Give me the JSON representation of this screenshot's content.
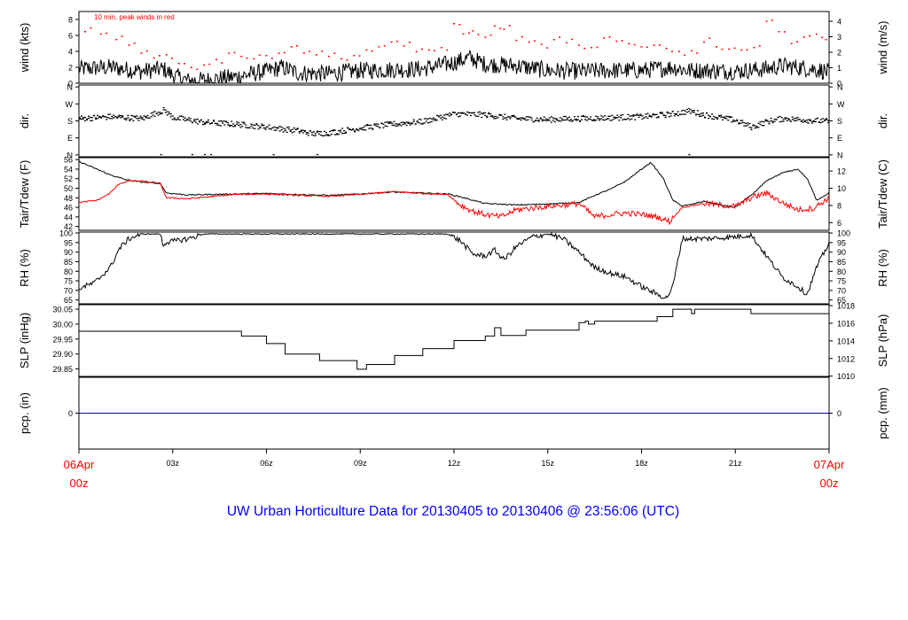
{
  "title": "UW Urban Horticulture Data for 20130405  to  20130406 @ 23:56:06  (UTC)",
  "colors": {
    "axis": "#000000",
    "secondary": "#ff0000",
    "precip": "#0000cc",
    "title": "#0000ff",
    "date": "#ff0000"
  },
  "chart_data": {
    "type": "line",
    "x": {
      "unit": "UTC hour",
      "range": [
        0,
        24
      ],
      "ticks": [
        {
          "h": 0,
          "lines": [
            "06Apr",
            "00z"
          ],
          "color": "red"
        },
        {
          "h": 3,
          "lines": [
            "03z"
          ]
        },
        {
          "h": 6,
          "lines": [
            "06z"
          ]
        },
        {
          "h": 9,
          "lines": [
            "09z"
          ]
        },
        {
          "h": 12,
          "lines": [
            "12z"
          ]
        },
        {
          "h": 15,
          "lines": [
            "15z"
          ]
        },
        {
          "h": 18,
          "lines": [
            "18z"
          ]
        },
        {
          "h": 21,
          "lines": [
            "21z"
          ]
        },
        {
          "h": 24,
          "lines": [
            "07Apr",
            "00z"
          ],
          "color": "red"
        }
      ]
    },
    "panels": [
      {
        "id": "wind",
        "ylabel_left": "wind (kts)",
        "ylabel_right": "wind (m/s)",
        "ylim": [
          0,
          9
        ],
        "left_ticks": [
          {
            "v": 0,
            "t": "0"
          },
          {
            "v": 2,
            "t": "2"
          },
          {
            "v": 4,
            "t": "4"
          },
          {
            "v": 6,
            "t": "6"
          },
          {
            "v": 8,
            "t": "8"
          }
        ],
        "right_ticks": [
          {
            "v": 0,
            "t": "0"
          },
          {
            "v": 1.944,
            "t": "1"
          },
          {
            "v": 3.888,
            "t": "2"
          },
          {
            "v": 5.832,
            "t": "3"
          },
          {
            "v": 7.776,
            "t": "4"
          }
        ],
        "annotation": "10 min. peak winds in red",
        "series": [
          {
            "style": "line",
            "color": "black",
            "x": [
              0,
              1,
              2,
              2.7,
              3,
              3.5,
              4,
              5,
              6,
              6.5,
              7,
              8,
              9,
              10,
              11,
              12,
              12.5,
              13,
              14,
              15,
              16,
              17,
              18,
              19,
              19.5,
              20,
              21,
              22,
              22.5,
              23,
              23.5,
              24
            ],
            "y": [
              1.8,
              2.0,
              1.5,
              1.8,
              1.0,
              0.3,
              0.4,
              0.8,
              1.5,
              2.0,
              1.3,
              1.2,
              1.6,
              1.7,
              1.8,
              2.6,
              3.2,
              2.4,
              2.2,
              1.6,
              1.5,
              1.6,
              1.6,
              2.0,
              1.6,
              1.6,
              1.5,
              1.8,
              2.2,
              2.0,
              1.8,
              1.4
            ]
          },
          {
            "style": "points",
            "color": "red",
            "x": [
              0.2,
              0.7,
              1.2,
              1.6,
              2.0,
              2.4,
              2.8,
              3.2,
              3.6,
              4.0,
              4.4,
              4.8,
              5.2,
              5.6,
              6.0,
              6.4,
              6.8,
              7.2,
              7.6,
              8.0,
              8.4,
              8.8,
              9.2,
              9.6,
              10.0,
              10.4,
              10.8,
              11.2,
              11.6,
              12.0,
              12.3,
              12.6,
              13.0,
              13.3,
              13.6,
              14.0,
              14.4,
              14.8,
              15.2,
              15.6,
              16.0,
              16.4,
              16.8,
              17.2,
              17.6,
              18.0,
              18.4,
              18.8,
              19.2,
              19.6,
              20.0,
              20.4,
              20.8,
              21.2,
              21.6,
              22.0,
              22.4,
              22.8,
              23.2,
              23.6,
              23.9
            ],
            "y": [
              6.5,
              6.2,
              5.5,
              4.8,
              3.8,
              3.2,
              3.6,
              2.5,
              2.0,
              2.3,
              3.0,
              3.8,
              3.4,
              3.1,
              3.5,
              3.8,
              4.6,
              3.8,
              3.6,
              3.4,
              3.1,
              3.5,
              4.2,
              4.6,
              5.2,
              4.7,
              4.0,
              4.2,
              4.5,
              7.5,
              6.2,
              6.6,
              5.8,
              7.2,
              6.8,
              5.4,
              5.2,
              4.9,
              5.5,
              5.1,
              4.8,
              4.5,
              5.7,
              5.3,
              5.0,
              4.6,
              4.8,
              4.4,
              4.0,
              4.1,
              5.2,
              4.6,
              4.3,
              4.2,
              4.5,
              7.8,
              6.5,
              5.0,
              5.8,
              6.2,
              5.5
            ]
          }
        ]
      },
      {
        "id": "dir",
        "ylabel_left": "dir.",
        "ylabel_right": "dir.",
        "ylim": [
          -10,
          370
        ],
        "left_ticks": [
          {
            "v": 0,
            "t": "N"
          },
          {
            "v": 90,
            "t": "E"
          },
          {
            "v": 180,
            "t": "S"
          },
          {
            "v": 270,
            "t": "W"
          },
          {
            "v": 360,
            "t": "N"
          }
        ],
        "right_ticks": [
          {
            "v": 0,
            "t": "N"
          },
          {
            "v": 90,
            "t": "E"
          },
          {
            "v": 180,
            "t": "S"
          },
          {
            "v": 270,
            "t": "W"
          },
          {
            "v": 360,
            "t": "N"
          }
        ],
        "series": [
          {
            "style": "points",
            "color": "black",
            "x": [
              0,
              1,
              2,
              2.7,
              3,
              4,
              5,
              6,
              7,
              7.5,
              8,
              9,
              10,
              11,
              12,
              13,
              14,
              15,
              16,
              17,
              18,
              19,
              19.5,
              20,
              21,
              21.5,
              22,
              22.5,
              23,
              24
            ],
            "y": [
              195,
              205,
              195,
              240,
              200,
              175,
              165,
              150,
              130,
              115,
              120,
              145,
              165,
              180,
              220,
              215,
              195,
              190,
              195,
              200,
              205,
              220,
              235,
              215,
              185,
              150,
              180,
              195,
              190,
              180
            ]
          }
        ]
      },
      {
        "id": "temp",
        "ylabel_left": "Tair/Tdew (F)",
        "ylabel_right": "Tair/Tdew (C)",
        "ylim": [
          41.2,
          56.4
        ],
        "left_ticks": [
          {
            "v": 42,
            "t": "42"
          },
          {
            "v": 44,
            "t": "44"
          },
          {
            "v": 46,
            "t": "46"
          },
          {
            "v": 48,
            "t": "48"
          },
          {
            "v": 50,
            "t": "50"
          },
          {
            "v": 52,
            "t": "52"
          },
          {
            "v": 54,
            "t": "54"
          },
          {
            "v": 56,
            "t": "56"
          }
        ],
        "right_ticks": [
          {
            "v": 42.8,
            "t": "6"
          },
          {
            "v": 46.4,
            "t": "8"
          },
          {
            "v": 50,
            "t": "10"
          },
          {
            "v": 53.6,
            "t": "12"
          }
        ],
        "series": [
          {
            "name": "Tair",
            "style": "line",
            "color": "black",
            "x": [
              0,
              0.5,
              1,
              1.5,
              2,
              2.6,
              2.8,
              3.5,
              5,
              6,
              7,
              8,
              9,
              10,
              11,
              11.8,
              12.2,
              12.6,
              13,
              14,
              15,
              16,
              16.5,
              17,
              17.5,
              18,
              18.3,
              18.7,
              19,
              19.3,
              19.6,
              20,
              20.5,
              21,
              21.5,
              22,
              22.5,
              23,
              23.3,
              23.6,
              24
            ],
            "y": [
              55.6,
              54.2,
              52.8,
              51.8,
              51.3,
              51.0,
              49.0,
              48.6,
              48.8,
              48.9,
              48.7,
              48.5,
              48.8,
              49.2,
              49.0,
              48.8,
              48.2,
              47.5,
              46.8,
              46.5,
              46.7,
              47.0,
              48.5,
              49.8,
              51.5,
              54.0,
              55.4,
              52.0,
              47.5,
              46.3,
              46.6,
              47.3,
              46.5,
              46.0,
              48.5,
              51.5,
              53.2,
              54.0,
              52.0,
              47.5,
              49.0
            ]
          },
          {
            "name": "Tdew",
            "style": "line",
            "color": "red",
            "x": [
              0,
              0.6,
              1,
              1.3,
              1.6,
              2,
              2.6,
              2.8,
              3.5,
              5,
              6,
              7,
              8,
              9,
              10,
              11,
              11.8,
              12.2,
              12.6,
              13,
              13.5,
              14,
              15,
              16,
              16.5,
              17,
              17.5,
              18,
              18.5,
              18.9,
              19.3,
              20,
              21,
              21.5,
              22,
              22.5,
              23,
              23.5,
              24
            ],
            "y": [
              47.0,
              47.5,
              49.0,
              51.0,
              51.5,
              51.5,
              51.0,
              48.0,
              47.8,
              48.7,
              48.8,
              48.5,
              48.3,
              48.7,
              49.3,
              48.9,
              48.7,
              46.5,
              45.2,
              44.5,
              44.0,
              45.5,
              46.2,
              46.8,
              44.0,
              44.5,
              44.8,
              44.5,
              44.0,
              43.0,
              46.0,
              46.8,
              46.2,
              48.0,
              49.0,
              47.0,
              45.5,
              45.8,
              48.0
            ]
          }
        ]
      },
      {
        "id": "rh",
        "ylabel_left": "RH (%)",
        "ylabel_right": "RH (%)",
        "ylim": [
          63,
          100.5
        ],
        "left_ticks": [
          {
            "v": 65,
            "t": "65"
          },
          {
            "v": 70,
            "t": "70"
          },
          {
            "v": 75,
            "t": "75"
          },
          {
            "v": 80,
            "t": "80"
          },
          {
            "v": 85,
            "t": "85"
          },
          {
            "v": 90,
            "t": "90"
          },
          {
            "v": 95,
            "t": "95"
          },
          {
            "v": 100,
            "t": "100"
          }
        ],
        "right_ticks": [
          {
            "v": 65,
            "t": "65"
          },
          {
            "v": 70,
            "t": "70"
          },
          {
            "v": 75,
            "t": "75"
          },
          {
            "v": 80,
            "t": "80"
          },
          {
            "v": 85,
            "t": "85"
          },
          {
            "v": 90,
            "t": "90"
          },
          {
            "v": 95,
            "t": "95"
          },
          {
            "v": 100,
            "t": "100"
          }
        ],
        "series": [
          {
            "style": "line",
            "color": "black",
            "x": [
              0,
              0.5,
              1,
              1.3,
              1.6,
              2,
              2.6,
              2.7,
              2.75,
              3.5,
              4,
              5,
              6,
              7,
              8,
              9,
              10,
              11,
              11.8,
              12.2,
              12.6,
              13,
              13.3,
              13.6,
              14,
              14.5,
              15,
              15.5,
              16,
              16.5,
              17,
              17.5,
              18,
              18.5,
              18.8,
              19,
              19.3,
              20,
              21,
              21.5,
              22,
              22.5,
              23,
              23.3,
              23.6,
              24
            ],
            "y": [
              71,
              74,
              82,
              92,
              97,
              99.5,
              99.5,
              93,
              95,
              97,
              99.5,
              99.5,
              99.5,
              99.5,
              99.5,
              99.5,
              99.5,
              99.5,
              99.5,
              96,
              89,
              88,
              91,
              86,
              93,
              98,
              99.5,
              97,
              90,
              82,
              79,
              77,
              72,
              68,
              66,
              72,
              97,
              97,
              98,
              99,
              88,
              77,
              72,
              68,
              82,
              95
            ]
          }
        ]
      },
      {
        "id": "slp",
        "ylabel_left": "SLP (inHg)",
        "ylabel_right": "SLP (hPa)",
        "ylim": [
          29.825,
          30.065
        ],
        "left_ticks": [
          {
            "v": 29.85,
            "t": "29.85"
          },
          {
            "v": 29.9,
            "t": "29.90"
          },
          {
            "v": 29.95,
            "t": "29.95"
          },
          {
            "v": 30.0,
            "t": "30.00"
          },
          {
            "v": 30.05,
            "t": "30.05"
          }
        ],
        "right_ticks": [
          {
            "v": 29.826,
            "t": "1010"
          },
          {
            "v": 29.885,
            "t": "1012"
          },
          {
            "v": 29.944,
            "t": "1014"
          },
          {
            "v": 30.003,
            "t": "1016"
          },
          {
            "v": 30.062,
            "t": "1018"
          }
        ],
        "series": [
          {
            "style": "step",
            "color": "black",
            "x": [
              0,
              5.2,
              6.0,
              6.6,
              7.7,
              8.9,
              9.2,
              10.1,
              11.0,
              12.0,
              13.0,
              13.3,
              13.5,
              14.3,
              16.0,
              16.2,
              16.3,
              16.5,
              17.0,
              18.5,
              19.0,
              19.6,
              19.7,
              20.0,
              21.5,
              24
            ],
            "y": [
              29.976,
              29.96,
              29.935,
              29.9,
              29.878,
              29.849,
              29.865,
              29.895,
              29.918,
              29.945,
              29.96,
              29.988,
              29.962,
              29.98,
              30.005,
              30.01,
              30.0,
              30.01,
              30.01,
              30.025,
              30.05,
              30.035,
              30.05,
              30.05,
              30.035,
              30.035
            ]
          }
        ]
      },
      {
        "id": "pcp",
        "ylabel_left": "pcp. (in)",
        "ylabel_right": "pcp. (mm)",
        "ylim": [
          -0.05,
          0.05
        ],
        "left_ticks": [
          {
            "v": 0,
            "t": "0"
          }
        ],
        "right_ticks": [
          {
            "v": 0,
            "t": "0"
          }
        ],
        "series": [
          {
            "style": "line",
            "color": "blue",
            "x": [
              0,
              24
            ],
            "y": [
              0,
              0
            ]
          }
        ]
      }
    ]
  }
}
